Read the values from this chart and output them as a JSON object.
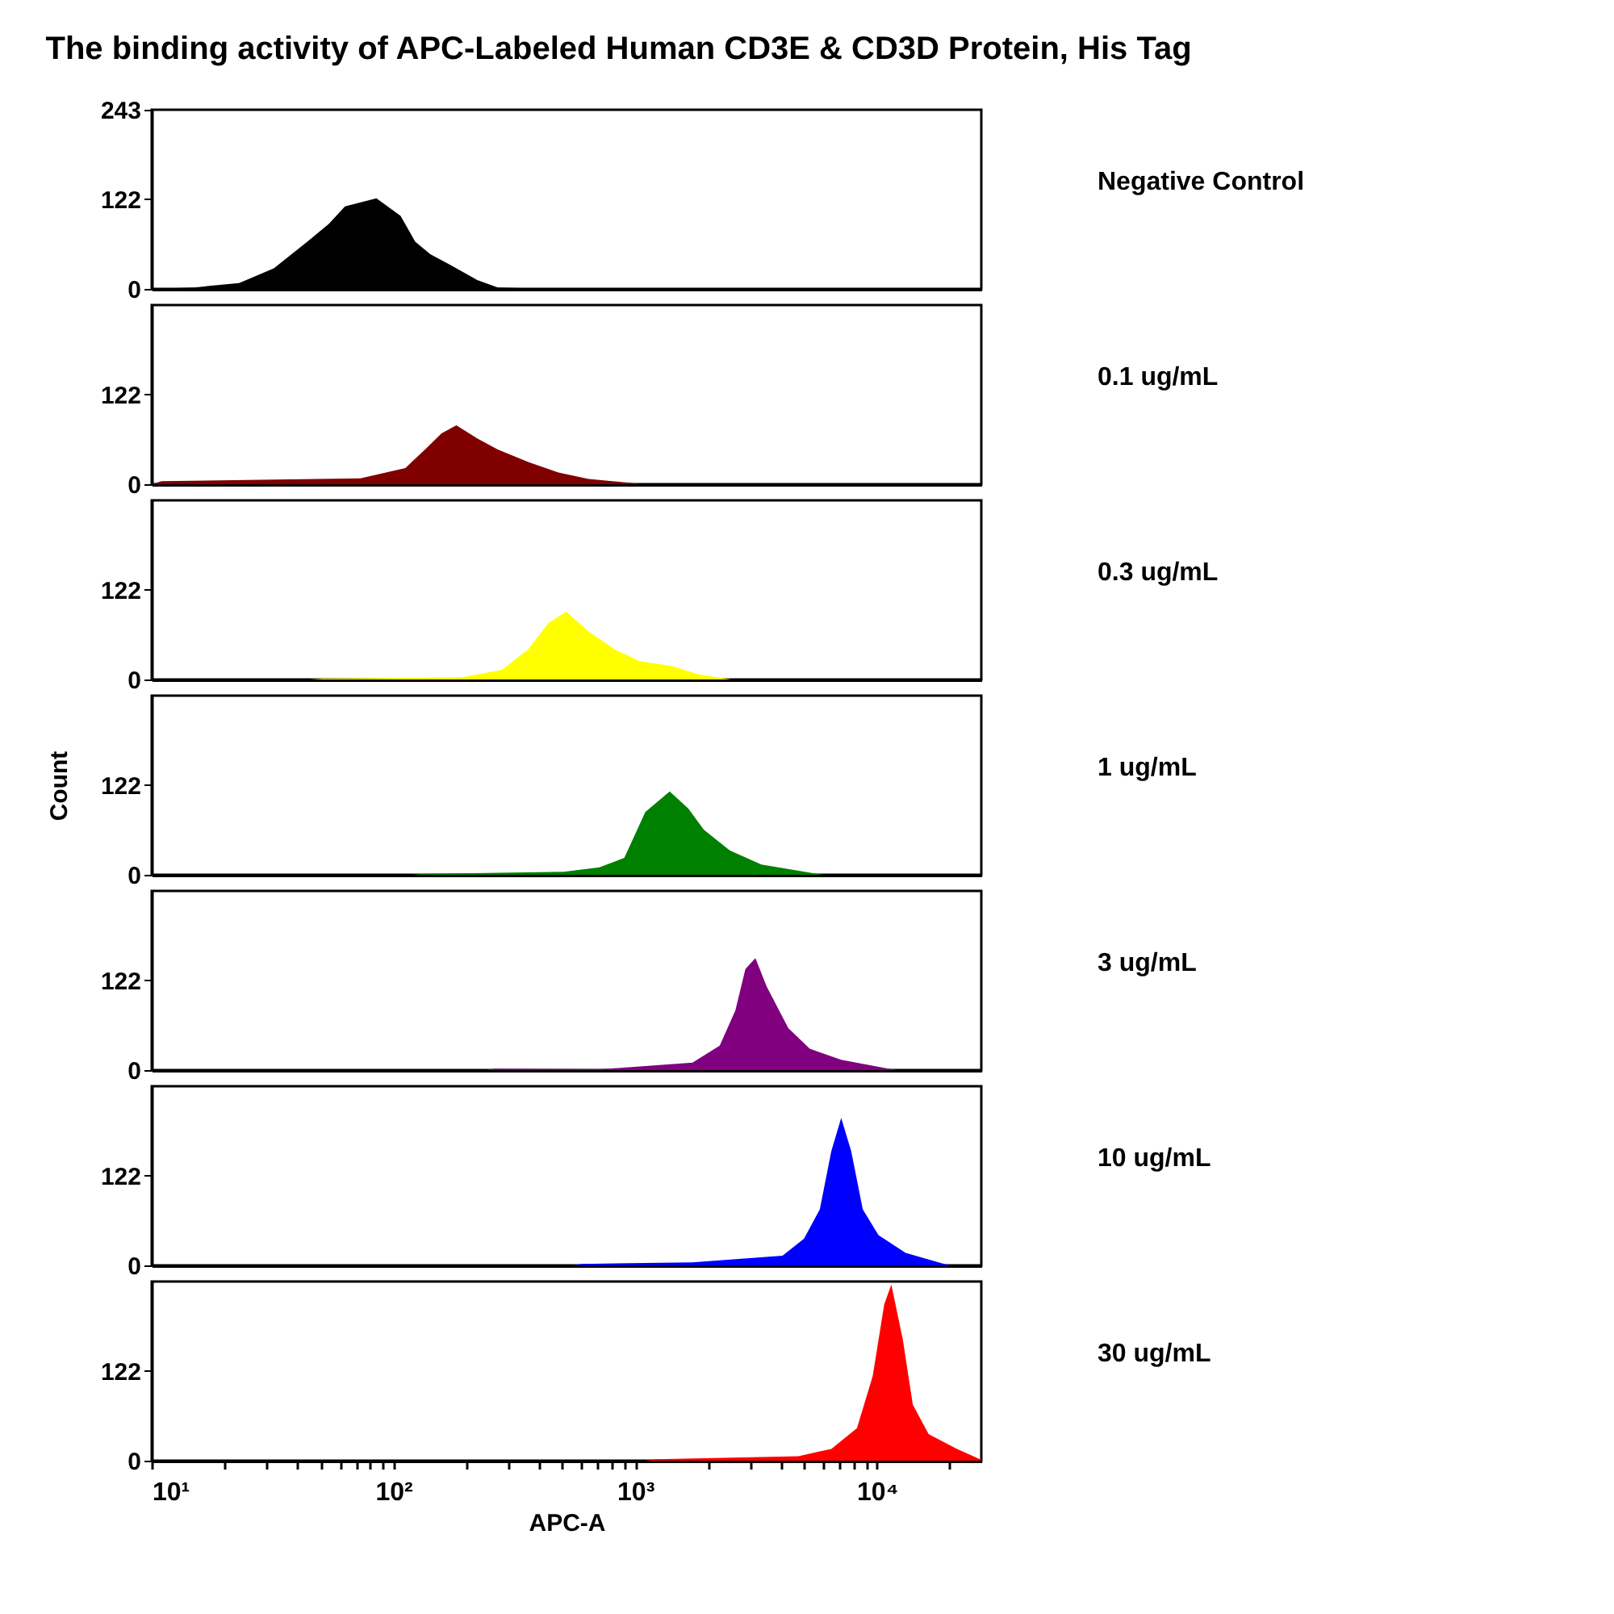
{
  "chart_data": [
    {
      "type": "area",
      "title": "The binding activity of APC-Labeled Human CD3E & CD3D Protein, His Tag",
      "log": "x",
      "tick_labels": "y",
      "xlim": [
        10,
        27000
      ],
      "ylim": [
        0,
        243
      ],
      "yticks": [
        0,
        122,
        243
      ],
      "x": [
        10,
        15,
        23,
        32,
        44,
        54,
        63,
        85,
        107,
        123,
        142,
        173,
        222,
        270,
        333,
        400,
        27000
      ],
      "series": [
        {
          "name": "Negative Control",
          "color": "#000000",
          "values": [
            0,
            2,
            8,
            28,
            64,
            88,
            112,
            123,
            99,
            64,
            47,
            32,
            12,
            2,
            1,
            0,
            0
          ]
        }
      ]
    },
    {
      "type": "area",
      "log": "x",
      "tick_labels": "y",
      "xlim": [
        10,
        27000
      ],
      "ylim": [
        0,
        243
      ],
      "yticks": [
        0,
        122
      ],
      "x": [
        10,
        11,
        73,
        112,
        137,
        158,
        182,
        222,
        270,
        361,
        481,
        641,
        949,
        1050
      ],
      "series": [
        {
          "name": "0.1 ug/mL",
          "color": "#800000",
          "values": [
            0,
            4,
            8,
            22,
            49,
            69,
            80,
            62,
            47,
            30,
            16,
            7,
            2,
            0
          ]
        }
      ]
    },
    {
      "type": "area",
      "log": "x",
      "tick_labels": "y",
      "xlim": [
        10,
        27000
      ],
      "ylim": [
        0,
        243
      ],
      "yticks": [
        0,
        122
      ],
      "x": [
        45,
        51,
        192,
        281,
        361,
        438,
        519,
        641,
        822,
        1042,
        1425,
        1820,
        2360,
        2500
      ],
      "series": [
        {
          "name": "0.3 ug/mL",
          "color": "#ffff00",
          "values": [
            0,
            1,
            3,
            13,
            41,
            77,
            92,
            65,
            41,
            25,
            18,
            7,
            1,
            0
          ]
        }
      ]
    },
    {
      "type": "area",
      "ylabel": "Count",
      "log": "x",
      "tick_labels": "y",
      "xlim": [
        10,
        27000
      ],
      "ylim": [
        0,
        243
      ],
      "yticks": [
        0,
        122
      ],
      "x": [
        120,
        130,
        507,
        711,
        901,
        1100,
        1388,
        1656,
        1923,
        2459,
        3320,
        5500,
        6000
      ],
      "series": [
        {
          "name": "1 ug/mL",
          "color": "#008000",
          "values": [
            0,
            1,
            4,
            10,
            23,
            85,
            113,
            90,
            61,
            33,
            14,
            2,
            0
          ]
        }
      ]
    },
    {
      "type": "area",
      "log": "x",
      "tick_labels": "y",
      "xlim": [
        10,
        27000
      ],
      "ylim": [
        0,
        243
      ],
      "yticks": [
        0,
        122
      ],
      "x": [
        240,
        263,
        711,
        1725,
        2235,
        2595,
        2855,
        3140,
        3500,
        4295,
        5270,
        7110,
        11150,
        12000
      ],
      "series": [
        {
          "name": "3 ug/mL",
          "color": "#800080",
          "values": [
            0,
            2,
            1,
            10,
            33,
            81,
            137,
            152,
            113,
            57,
            29,
            14,
            2,
            0
          ]
        }
      ]
    },
    {
      "type": "area",
      "log": "x",
      "tick_labels": "y",
      "xlim": [
        10,
        27000
      ],
      "ylim": [
        0,
        243
      ],
      "yticks": [
        0,
        122
      ],
      "x": [
        550,
        600,
        1725,
        4065,
        4985,
        5800,
        6470,
        7110,
        7820,
        8730,
        10140,
        13130,
        18450,
        20000
      ],
      "series": [
        {
          "name": "10 ug/mL",
          "color": "#0000ff",
          "values": [
            0,
            2,
            4,
            13,
            36,
            76,
            155,
            200,
            155,
            76,
            41,
            17,
            3,
            0
          ]
        }
      ]
    },
    {
      "type": "area",
      "xlabel": "APC-A",
      "log": "x",
      "xlim": [
        10,
        27000
      ],
      "ylim": [
        0,
        243
      ],
      "yticks": [
        0,
        122
      ],
      "xticks": [
        {
          "value": 10,
          "label": "10¹"
        },
        {
          "value": 20,
          "label": null
        },
        {
          "value": 30,
          "label": null
        },
        {
          "value": 40,
          "label": null
        },
        {
          "value": 50,
          "label": null
        },
        {
          "value": 60,
          "label": null
        },
        {
          "value": 70,
          "label": null
        },
        {
          "value": 80,
          "label": null
        },
        {
          "value": 90,
          "label": null
        },
        {
          "value": 100,
          "label": "10²"
        },
        {
          "value": 200,
          "label": null
        },
        {
          "value": 300,
          "label": null
        },
        {
          "value": 400,
          "label": null
        },
        {
          "value": 500,
          "label": null
        },
        {
          "value": 600,
          "label": null
        },
        {
          "value": 700,
          "label": null
        },
        {
          "value": 800,
          "label": null
        },
        {
          "value": 900,
          "label": null
        },
        {
          "value": 1000,
          "label": "10³"
        },
        {
          "value": 2000,
          "label": null
        },
        {
          "value": 3000,
          "label": null
        },
        {
          "value": 4000,
          "label": null
        },
        {
          "value": 5000,
          "label": null
        },
        {
          "value": 6000,
          "label": null
        },
        {
          "value": 7000,
          "label": null
        },
        {
          "value": 8000,
          "label": null
        },
        {
          "value": 9000,
          "label": null
        },
        {
          "value": 10000,
          "label": "10⁴"
        },
        {
          "value": 20000,
          "label": null
        }
      ],
      "x": [
        1100,
        1210,
        4730,
        6470,
        8260,
        9600,
        10710,
        11460,
        12790,
        14060,
        16340,
        21430,
        27000
      ],
      "series": [
        {
          "name": "30 ug/mL",
          "color": "#ff0000",
          "values": [
            0,
            2,
            6,
            16,
            44,
            115,
            212,
            239,
            164,
            76,
            36,
            16,
            1
          ]
        }
      ]
    }
  ]
}
